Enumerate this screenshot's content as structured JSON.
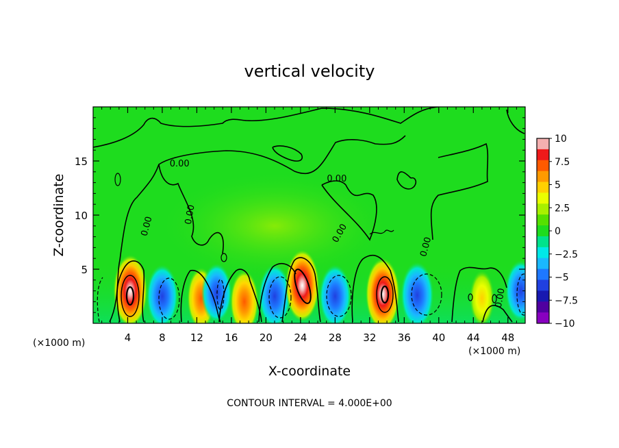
{
  "chart_data": {
    "type": "heatmap",
    "title": "vertical velocity",
    "xlabel": "X-coordinate",
    "ylabel": "Z-coordinate",
    "x_unit_left": "(×1000 m)",
    "x_unit_right": "(×1000 m)",
    "xlim": [
      0,
      50
    ],
    "ylim": [
      0,
      20
    ],
    "x_ticks": [
      4,
      8,
      12,
      16,
      20,
      24,
      28,
      32,
      36,
      40,
      44,
      48
    ],
    "y_ticks": [
      5,
      10,
      15
    ],
    "footer": "CONTOUR INTERVAL = 4.000E+00",
    "contour_labels": [
      "0.00",
      "0.00",
      "0.00",
      "0.00",
      "0.00",
      "0.00",
      "0.00"
    ],
    "colorbar": {
      "ticks": [
        "10",
        "7.5",
        "5",
        "2.5",
        "0",
        "−2.5",
        "−5",
        "−7.5",
        "−10"
      ],
      "colors": [
        "#f4b0b0",
        "#ee1a1a",
        "#ff5a00",
        "#ff9a00",
        "#ffd000",
        "#eaff00",
        "#a8f000",
        "#55e000",
        "#1edc1e",
        "#00e28c",
        "#00e8e8",
        "#1ab8ff",
        "#1e78ff",
        "#2040e0",
        "#1818b0",
        "#5000a0",
        "#8800c0"
      ]
    },
    "features": [
      {
        "x": 4.3,
        "z": 3.0,
        "peak": 10,
        "note": "updraft"
      },
      {
        "x": 8.0,
        "z": 2.5,
        "peak": -6,
        "note": "downdraft"
      },
      {
        "x": 12.5,
        "z": 2.3,
        "peak": 5,
        "note": "updraft"
      },
      {
        "x": 14.3,
        "z": 2.8,
        "peak": -4,
        "note": "downdraft"
      },
      {
        "x": 17.5,
        "z": 2.0,
        "peak": 5.5,
        "note": "updraft"
      },
      {
        "x": 21.0,
        "z": 2.5,
        "peak": -6.5,
        "note": "downdraft"
      },
      {
        "x": 24.2,
        "z": 3.5,
        "peak": 10,
        "note": "updraft"
      },
      {
        "x": 28.0,
        "z": 2.5,
        "peak": -6,
        "note": "downdraft"
      },
      {
        "x": 33.5,
        "z": 2.7,
        "peak": 10,
        "note": "updraft"
      },
      {
        "x": 37.5,
        "z": 2.6,
        "peak": -7.5,
        "note": "downdraft"
      },
      {
        "x": 45.0,
        "z": 2.3,
        "peak": 2.5,
        "note": "updraft"
      },
      {
        "x": 49.5,
        "z": 3.0,
        "peak": -5,
        "note": "downdraft"
      }
    ]
  }
}
